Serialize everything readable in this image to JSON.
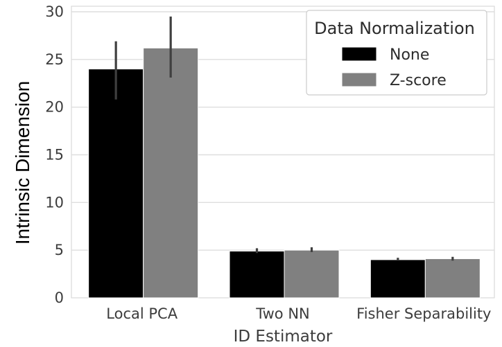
{
  "chart_data": {
    "type": "bar",
    "title": "",
    "xlabel": "ID Estimator",
    "ylabel": "Intrinsic Dimension",
    "categories": [
      "Local PCA",
      "Two NN",
      "Fisher Separability"
    ],
    "ylim": [
      0,
      30
    ],
    "yticks": [
      "0",
      "5",
      "10",
      "15",
      "20",
      "25",
      "30"
    ],
    "grid": true,
    "legend": {
      "title": "Data Normalization",
      "position": "top-right"
    },
    "series": [
      {
        "name": "None",
        "color": "#000000",
        "values": [
          24.0,
          4.9,
          4.0
        ],
        "error_low": [
          20.8,
          4.7,
          3.9
        ],
        "error_high": [
          26.9,
          5.2,
          4.2
        ]
      },
      {
        "name": "Z-score",
        "color": "#808080",
        "values": [
          26.2,
          5.0,
          4.1
        ],
        "error_low": [
          23.1,
          4.8,
          3.9
        ],
        "error_high": [
          29.5,
          5.3,
          4.3
        ]
      }
    ]
  }
}
